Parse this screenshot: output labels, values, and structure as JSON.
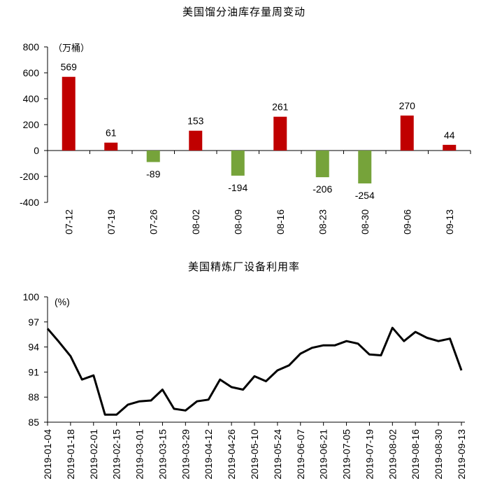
{
  "chart_data": [
    {
      "type": "bar",
      "title": "美国馏分油库存量周变动",
      "unit_label": "（万桶）",
      "categories": [
        "07-12",
        "07-19",
        "07-26",
        "08-02",
        "08-09",
        "08-16",
        "08-23",
        "08-30",
        "09-06",
        "09-13"
      ],
      "values": [
        569,
        61,
        -89,
        153,
        -194,
        261,
        -206,
        -254,
        270,
        44
      ],
      "ylim": [
        -400,
        800
      ],
      "yticks": [
        "800",
        "600",
        "400",
        "200",
        "0",
        "-200",
        "-400"
      ],
      "positive_color": "#c00000",
      "negative_color": "#76a33a",
      "grid": false
    },
    {
      "type": "line",
      "title": "美国精炼厂设备利用率",
      "unit_label": "(%)",
      "ylim": [
        85,
        100
      ],
      "yticks": [
        "100",
        "97",
        "94",
        "91",
        "88",
        "85"
      ],
      "xticks": [
        "2019-01-04",
        "2019-01-18",
        "2019-02-01",
        "2019-02-15",
        "2019-03-01",
        "2019-03-15",
        "2019-03-29",
        "2019-04-12",
        "2019-04-26",
        "2019-05-10",
        "2019-05-24",
        "2019-06-07",
        "2019-06-21",
        "2019-07-05",
        "2019-07-19",
        "2019-08-02",
        "2019-08-16",
        "2019-08-30",
        "2019-09-13"
      ],
      "x": [
        "2019-01-04",
        "2019-01-11",
        "2019-01-18",
        "2019-01-25",
        "2019-02-01",
        "2019-02-08",
        "2019-02-15",
        "2019-02-22",
        "2019-03-01",
        "2019-03-08",
        "2019-03-15",
        "2019-03-22",
        "2019-03-29",
        "2019-04-05",
        "2019-04-12",
        "2019-04-19",
        "2019-04-26",
        "2019-05-03",
        "2019-05-10",
        "2019-05-17",
        "2019-05-24",
        "2019-05-31",
        "2019-06-07",
        "2019-06-14",
        "2019-06-21",
        "2019-06-28",
        "2019-07-05",
        "2019-07-12",
        "2019-07-19",
        "2019-07-26",
        "2019-08-02",
        "2019-08-09",
        "2019-08-16",
        "2019-08-23",
        "2019-08-30",
        "2019-09-06",
        "2019-09-13"
      ],
      "values": [
        96.2,
        94.6,
        92.9,
        90.1,
        90.6,
        85.9,
        85.9,
        87.1,
        87.5,
        87.6,
        88.9,
        86.6,
        86.4,
        87.5,
        87.7,
        90.1,
        89.2,
        88.9,
        90.5,
        89.9,
        91.2,
        91.8,
        93.2,
        93.9,
        94.2,
        94.2,
        94.7,
        94.4,
        93.1,
        93.0,
        96.3,
        94.7,
        95.8,
        95.1,
        94.7,
        95.0,
        91.2
      ],
      "color": "#000000",
      "grid": false
    }
  ]
}
